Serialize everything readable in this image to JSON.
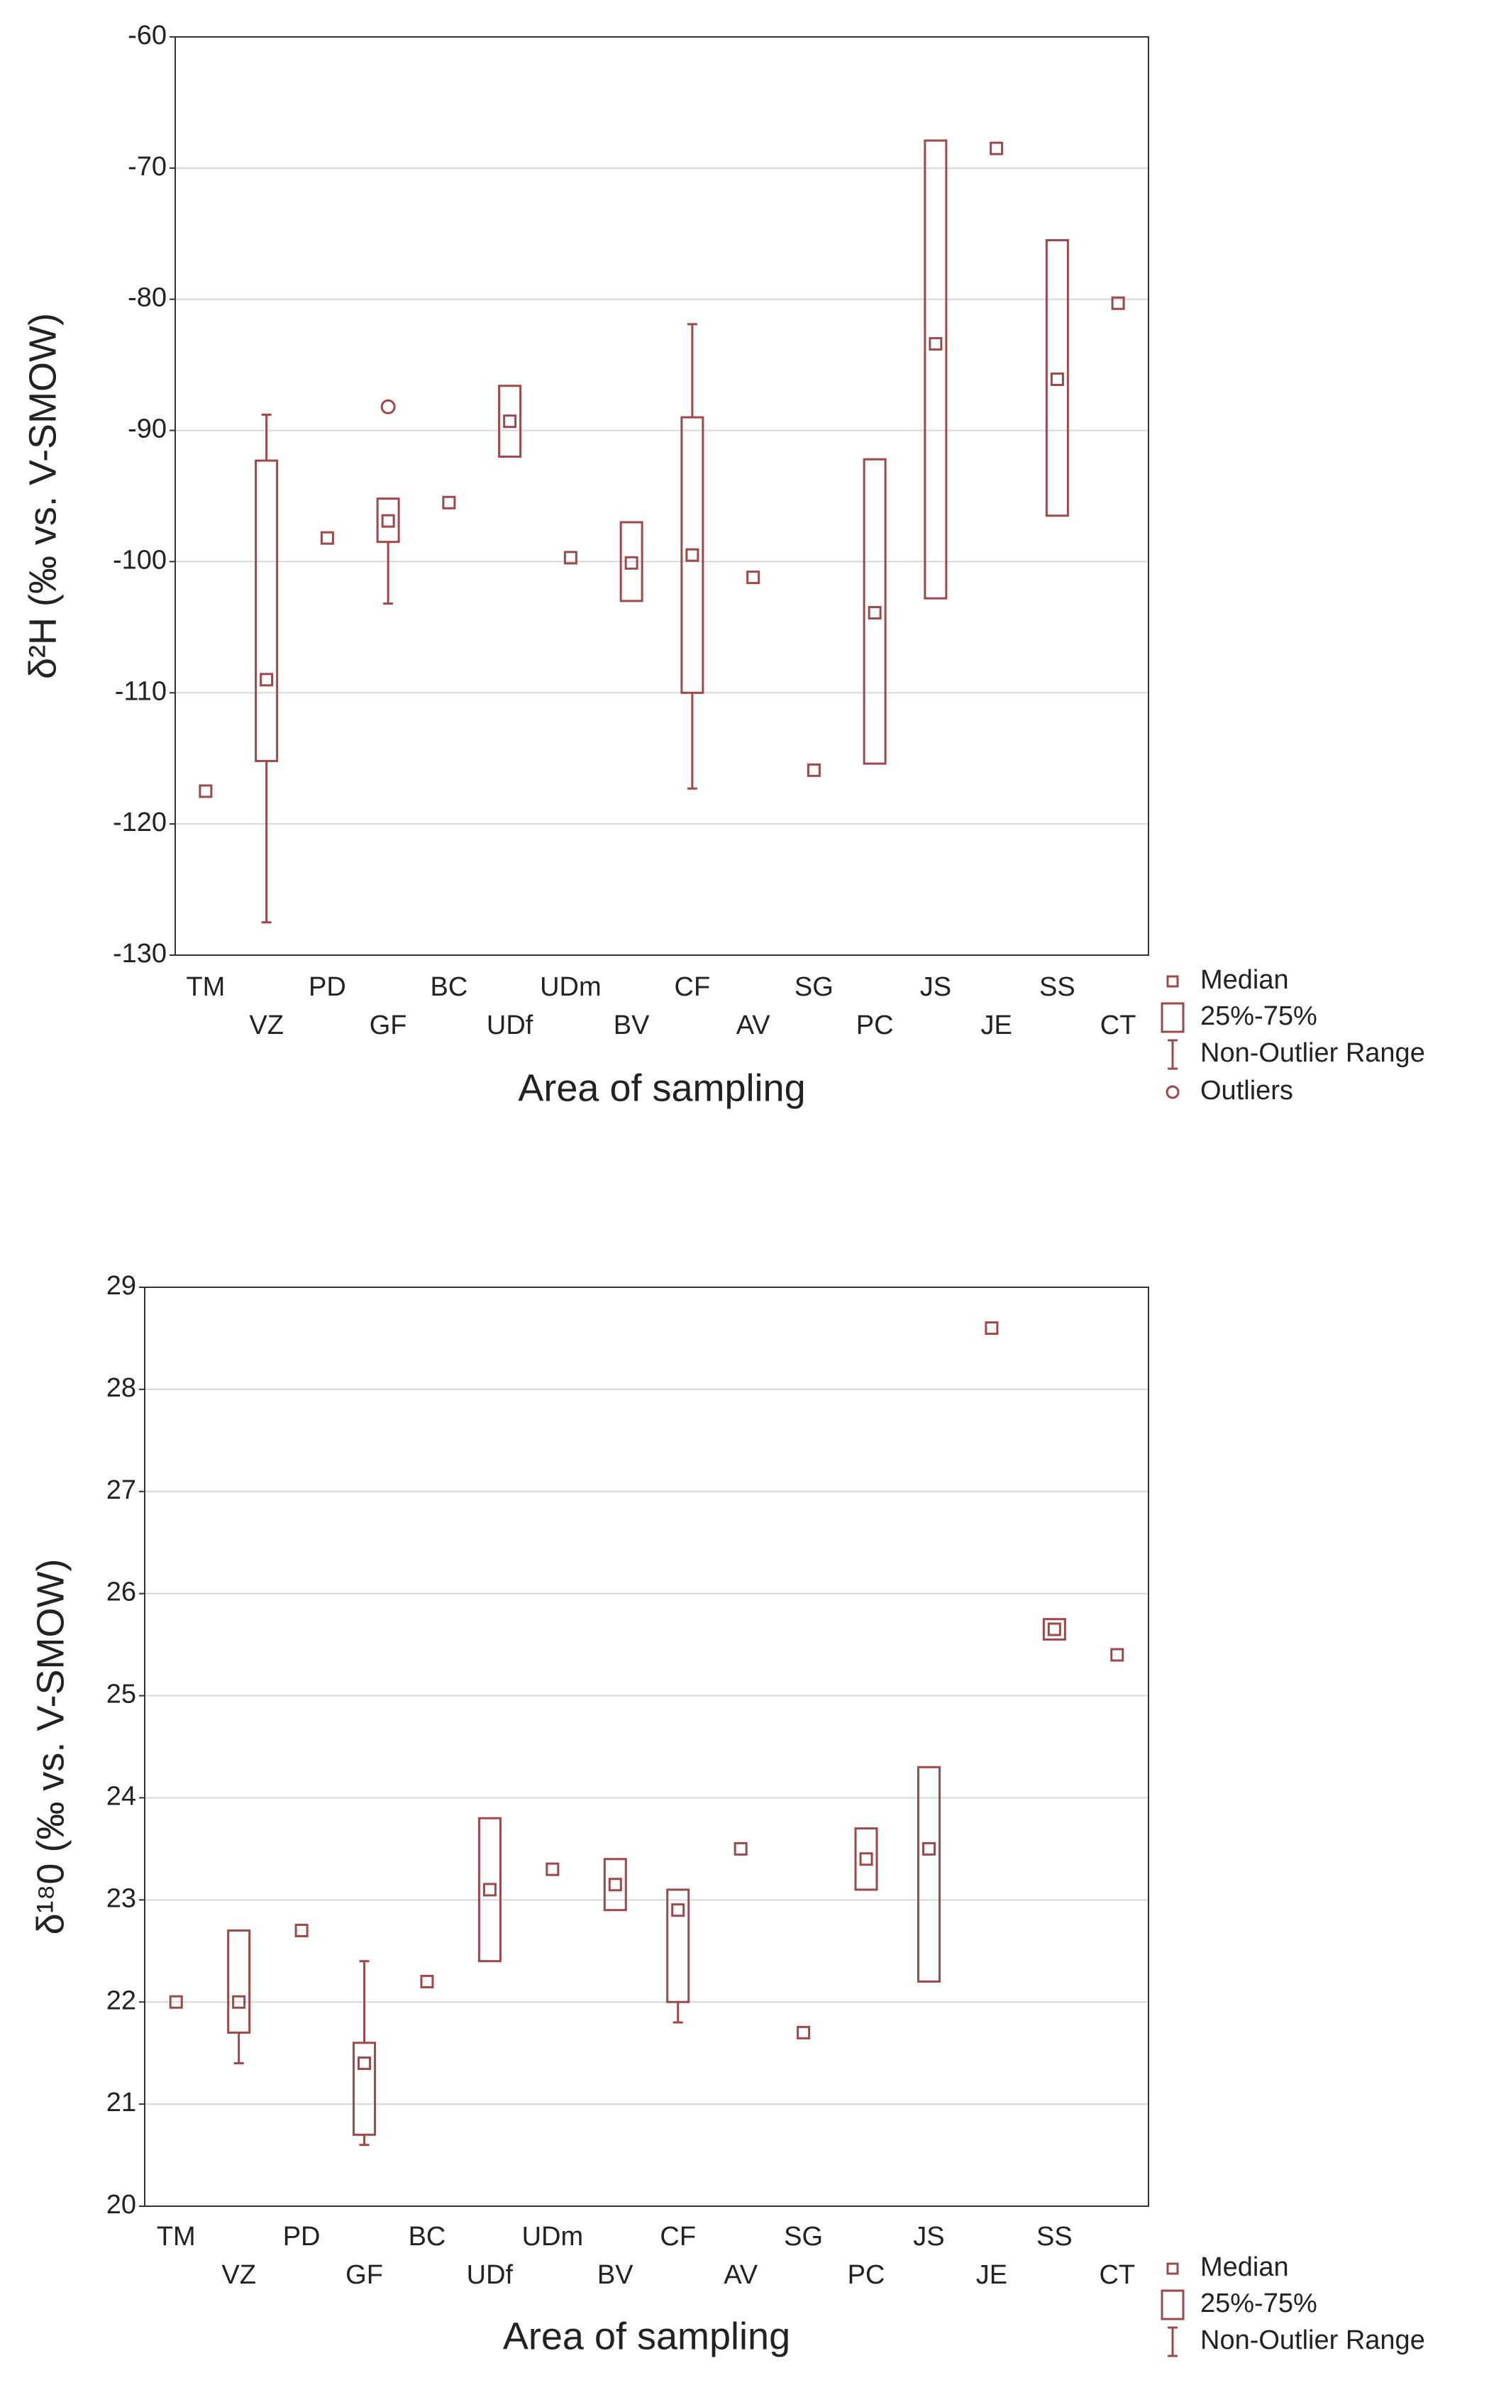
{
  "chart_data": [
    {
      "type": "boxplot",
      "y_label": "δ²H (‰ vs. V-SMOW)",
      "x_label": "Area of sampling",
      "categories": [
        "TM",
        "VZ",
        "PD",
        "GF",
        "BC",
        "UDf",
        "UDm",
        "BV",
        "CF",
        "AV",
        "SG",
        "PC",
        "JS",
        "JE",
        "SS",
        "CT"
      ],
      "median": [
        -117.5,
        -109,
        -98.2,
        -96.9,
        -95.5,
        -89.3,
        -99.7,
        -100.1,
        -99.5,
        -101.2,
        -115.9,
        -103.9,
        -83.4,
        -68.5,
        -86.1,
        -80.3
      ],
      "q1": [
        null,
        -115.2,
        null,
        -98.5,
        null,
        -92,
        null,
        -103,
        -110,
        null,
        null,
        -115.4,
        -102.8,
        null,
        -96.5,
        null
      ],
      "q3": [
        null,
        -92.3,
        null,
        -95.2,
        null,
        -86.6,
        null,
        -97,
        -89,
        null,
        null,
        -92.2,
        -67.9,
        null,
        -75.5,
        null
      ],
      "whisker_low": [
        null,
        -127.5,
        null,
        -103.2,
        null,
        null,
        null,
        null,
        -117.3,
        null,
        null,
        null,
        null,
        null,
        null,
        null
      ],
      "whisker_high": [
        null,
        -88.8,
        null,
        null,
        null,
        null,
        null,
        null,
        -81.9,
        null,
        null,
        null,
        null,
        null,
        null,
        null
      ],
      "outliers": [
        null,
        null,
        null,
        -88.2,
        null,
        null,
        null,
        null,
        null,
        null,
        null,
        null,
        null,
        null,
        null,
        null
      ],
      "legend": [
        "Median",
        "25%-75%",
        "Non-Outlier Range",
        "Outliers"
      ],
      "color": "#a04848",
      "ylim": [
        -130,
        -60
      ],
      "yticks": [
        -130,
        -120,
        -110,
        -100,
        -90,
        -80,
        -70,
        -60
      ],
      "grid": true
    },
    {
      "type": "boxplot",
      "y_label": "δ¹⁸0 (‰ vs. V-SMOW)",
      "x_label": "Area of sampling",
      "categories": [
        "TM",
        "VZ",
        "PD",
        "GF",
        "BC",
        "UDf",
        "UDm",
        "BV",
        "CF",
        "AV",
        "SG",
        "PC",
        "JS",
        "JE",
        "SS",
        "CT"
      ],
      "median": [
        22.0,
        22.0,
        22.7,
        21.4,
        22.2,
        23.1,
        23.3,
        23.15,
        22.9,
        23.5,
        21.7,
        23.4,
        23.5,
        28.6,
        25.65,
        25.4
      ],
      "q1": [
        null,
        21.7,
        null,
        20.7,
        null,
        22.4,
        null,
        22.9,
        22.0,
        null,
        null,
        23.1,
        22.2,
        null,
        25.55,
        null
      ],
      "q3": [
        null,
        22.7,
        null,
        21.6,
        null,
        23.8,
        null,
        23.4,
        23.1,
        null,
        null,
        23.7,
        24.3,
        null,
        25.75,
        null
      ],
      "whisker_low": [
        null,
        21.4,
        null,
        20.6,
        null,
        null,
        null,
        null,
        21.8,
        null,
        null,
        null,
        null,
        null,
        null,
        null
      ],
      "whisker_high": [
        null,
        null,
        null,
        22.4,
        null,
        null,
        null,
        null,
        null,
        null,
        null,
        null,
        null,
        null,
        null,
        null
      ],
      "legend": [
        "Median",
        "25%-75%",
        "Non-Outlier Range"
      ],
      "color": "#a04848",
      "ylim": [
        20,
        29
      ],
      "yticks": [
        20,
        21,
        22,
        23,
        24,
        25,
        26,
        27,
        28,
        29
      ],
      "grid": true
    }
  ]
}
